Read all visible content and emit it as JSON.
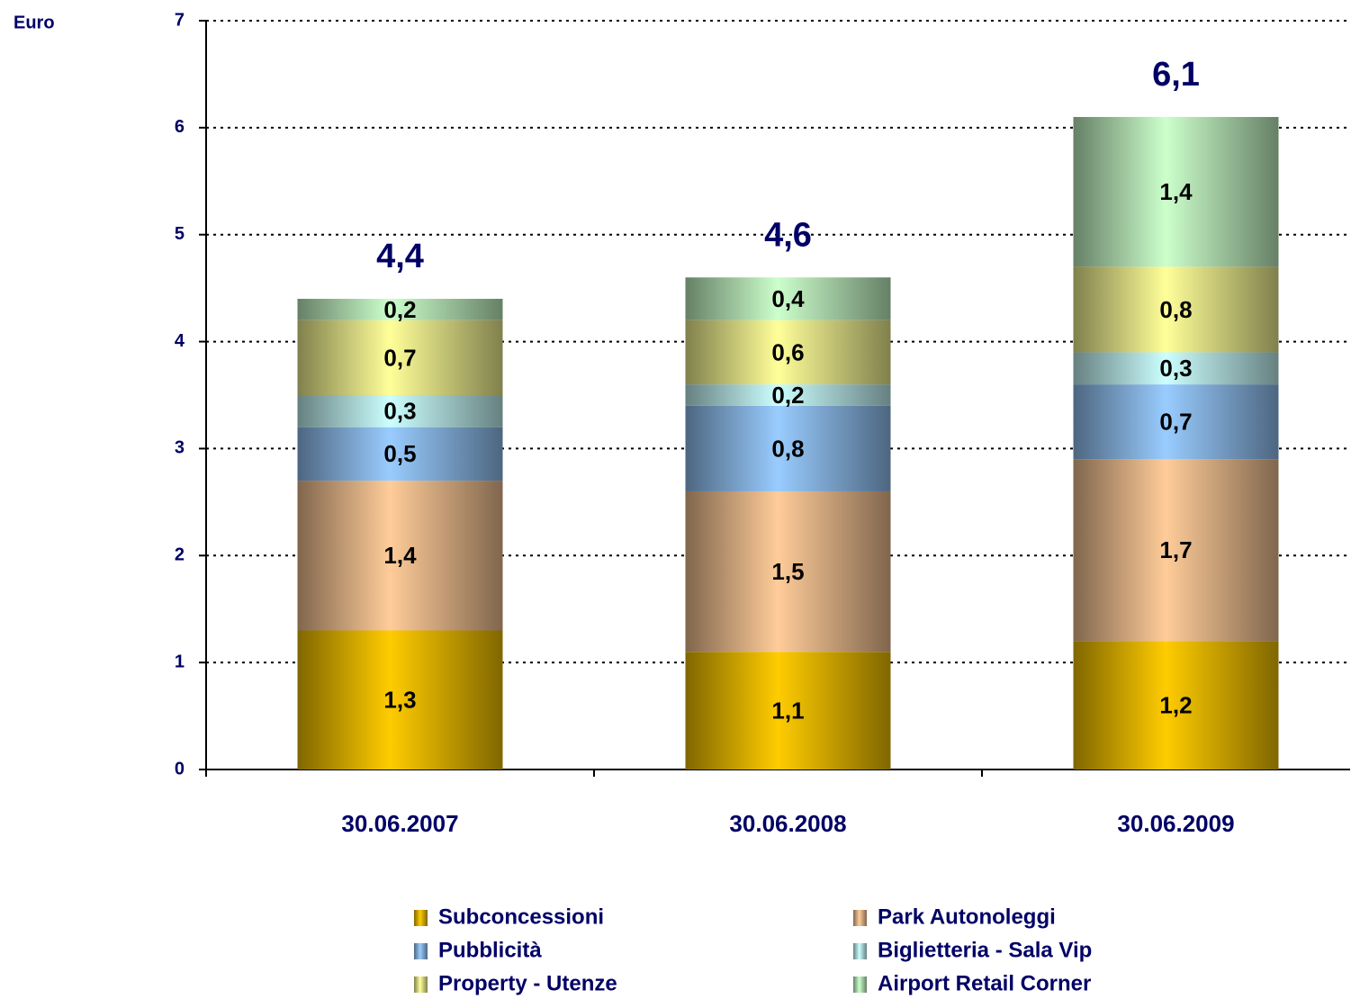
{
  "chart_data": {
    "type": "stacked_bar",
    "y_axis_label": "Euro",
    "categories": [
      "30.06.2007",
      "30.06.2008",
      "30.06.2009"
    ],
    "series": [
      {
        "name": "Subconcessioni",
        "color": "#ffcc00",
        "values": [
          1.3,
          1.1,
          1.2
        ],
        "value_labels": [
          "1,3",
          "1,1",
          "1,2"
        ]
      },
      {
        "name": "Park Autonoleggi",
        "color": "#ffcc99",
        "values": [
          1.4,
          1.5,
          1.7
        ],
        "value_labels": [
          "1,4",
          "1,5",
          "1,7"
        ]
      },
      {
        "name": "Pubblicità",
        "color": "#99ccff",
        "values": [
          0.5,
          0.8,
          0.7
        ],
        "value_labels": [
          "0,5",
          "0,8",
          "0,7"
        ]
      },
      {
        "name": "Biglietteria - Sala Vip",
        "color": "#ccffff",
        "values": [
          0.3,
          0.2,
          0.3
        ],
        "value_labels": [
          "0,3",
          "0,2",
          "0,3"
        ]
      },
      {
        "name": "Property - Utenze",
        "color": "#ffff99",
        "values": [
          0.7,
          0.6,
          0.8
        ],
        "value_labels": [
          "0,7",
          "0,6",
          "0,8"
        ]
      },
      {
        "name": "Airport Retail Corner",
        "color": "#ccffcc",
        "values": [
          0.2,
          0.4,
          1.4
        ],
        "value_labels": [
          "0,2",
          "0,4",
          "1,4"
        ]
      }
    ],
    "totals": [
      4.4,
      4.6,
      6.1
    ],
    "total_labels": [
      "4,4",
      "4,6",
      "6,1"
    ],
    "ylim": [
      0,
      7
    ],
    "yticks": [
      0,
      1,
      2,
      3,
      4,
      5,
      6,
      7
    ],
    "grid": true
  }
}
